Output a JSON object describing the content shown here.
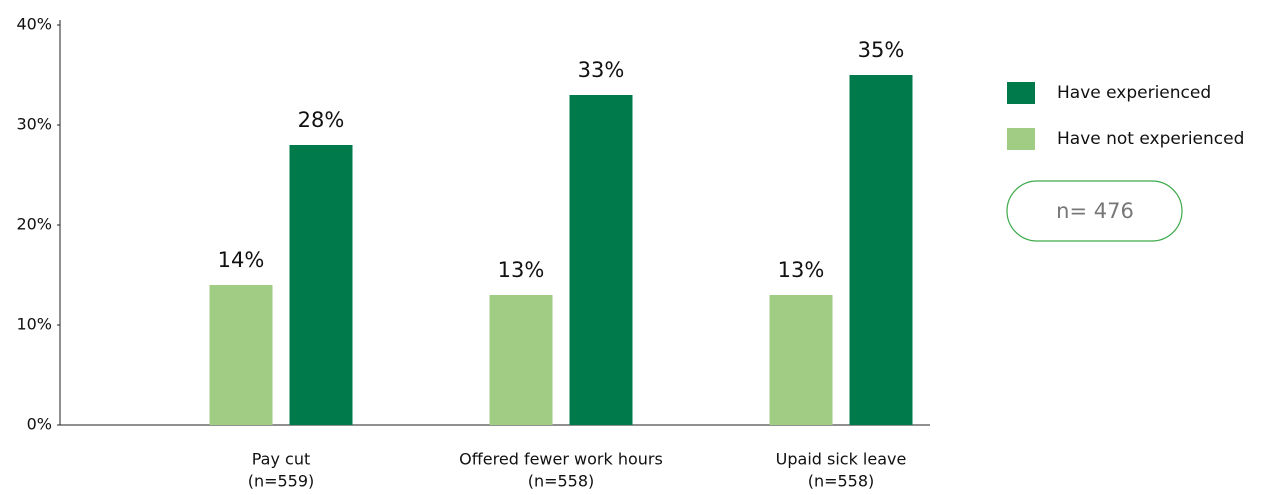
{
  "chart_data": {
    "type": "bar",
    "categories": [
      [
        "Pay cut",
        "(n=559)"
      ],
      [
        "Offered fewer work hours",
        "(n=558)"
      ],
      [
        "Upaid sick leave",
        "(n=558)"
      ]
    ],
    "series": [
      {
        "name": "Have experienced",
        "color": "#007a4a",
        "values": [
          28,
          33,
          35
        ],
        "value_labels": [
          "28%",
          "33%",
          "35%"
        ]
      },
      {
        "name": "Have not experienced",
        "color": "#a1cc84",
        "values": [
          14,
          13,
          13
        ],
        "value_labels": [
          "14%",
          "13%",
          "13%"
        ]
      }
    ],
    "ylim": [
      0,
      40
    ],
    "yticks": [
      {
        "value": 0,
        "label": "0%"
      },
      {
        "value": 10,
        "label": "10%"
      },
      {
        "value": 20,
        "label": "20%"
      },
      {
        "value": 30,
        "label": "30%"
      },
      {
        "value": 40,
        "label": "40%"
      }
    ],
    "legend": "right",
    "annotation": "n= 476"
  }
}
